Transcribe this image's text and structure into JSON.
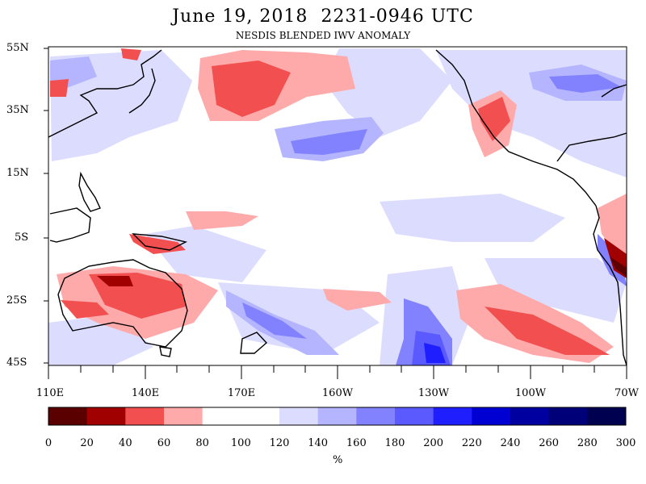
{
  "header": {
    "title": "June 19, 2018  2231-0946 UTC",
    "subtitle": "NESDIS BLENDED IWV ANOMALY"
  },
  "axes": {
    "lat_labels": [
      "55N",
      "35N",
      "15N",
      "5S",
      "25S",
      "45S"
    ],
    "lon_labels": [
      "110E",
      "140E",
      "170E",
      "160W",
      "130W",
      "100W",
      "70W"
    ]
  },
  "colorbar": {
    "tick_labels": [
      "0",
      "20",
      "40",
      "60",
      "80",
      "100",
      "120",
      "140",
      "160",
      "180",
      "200",
      "220",
      "240",
      "260",
      "280",
      "300"
    ],
    "unit": "%",
    "colors": [
      "#5a0000",
      "#a00000",
      "#f25050",
      "#ffaaaa",
      "#ffffff",
      "#ffffff",
      "#dcdcff",
      "#b4b4ff",
      "#8282ff",
      "#5a5aff",
      "#1e1eff",
      "#0000d2",
      "#0000a0",
      "#000078",
      "#000050"
    ]
  },
  "map": {
    "region": "Pacific Ocean",
    "lat_range": [
      "45S",
      "55N"
    ],
    "lon_range": [
      "110E",
      "70W"
    ]
  }
}
